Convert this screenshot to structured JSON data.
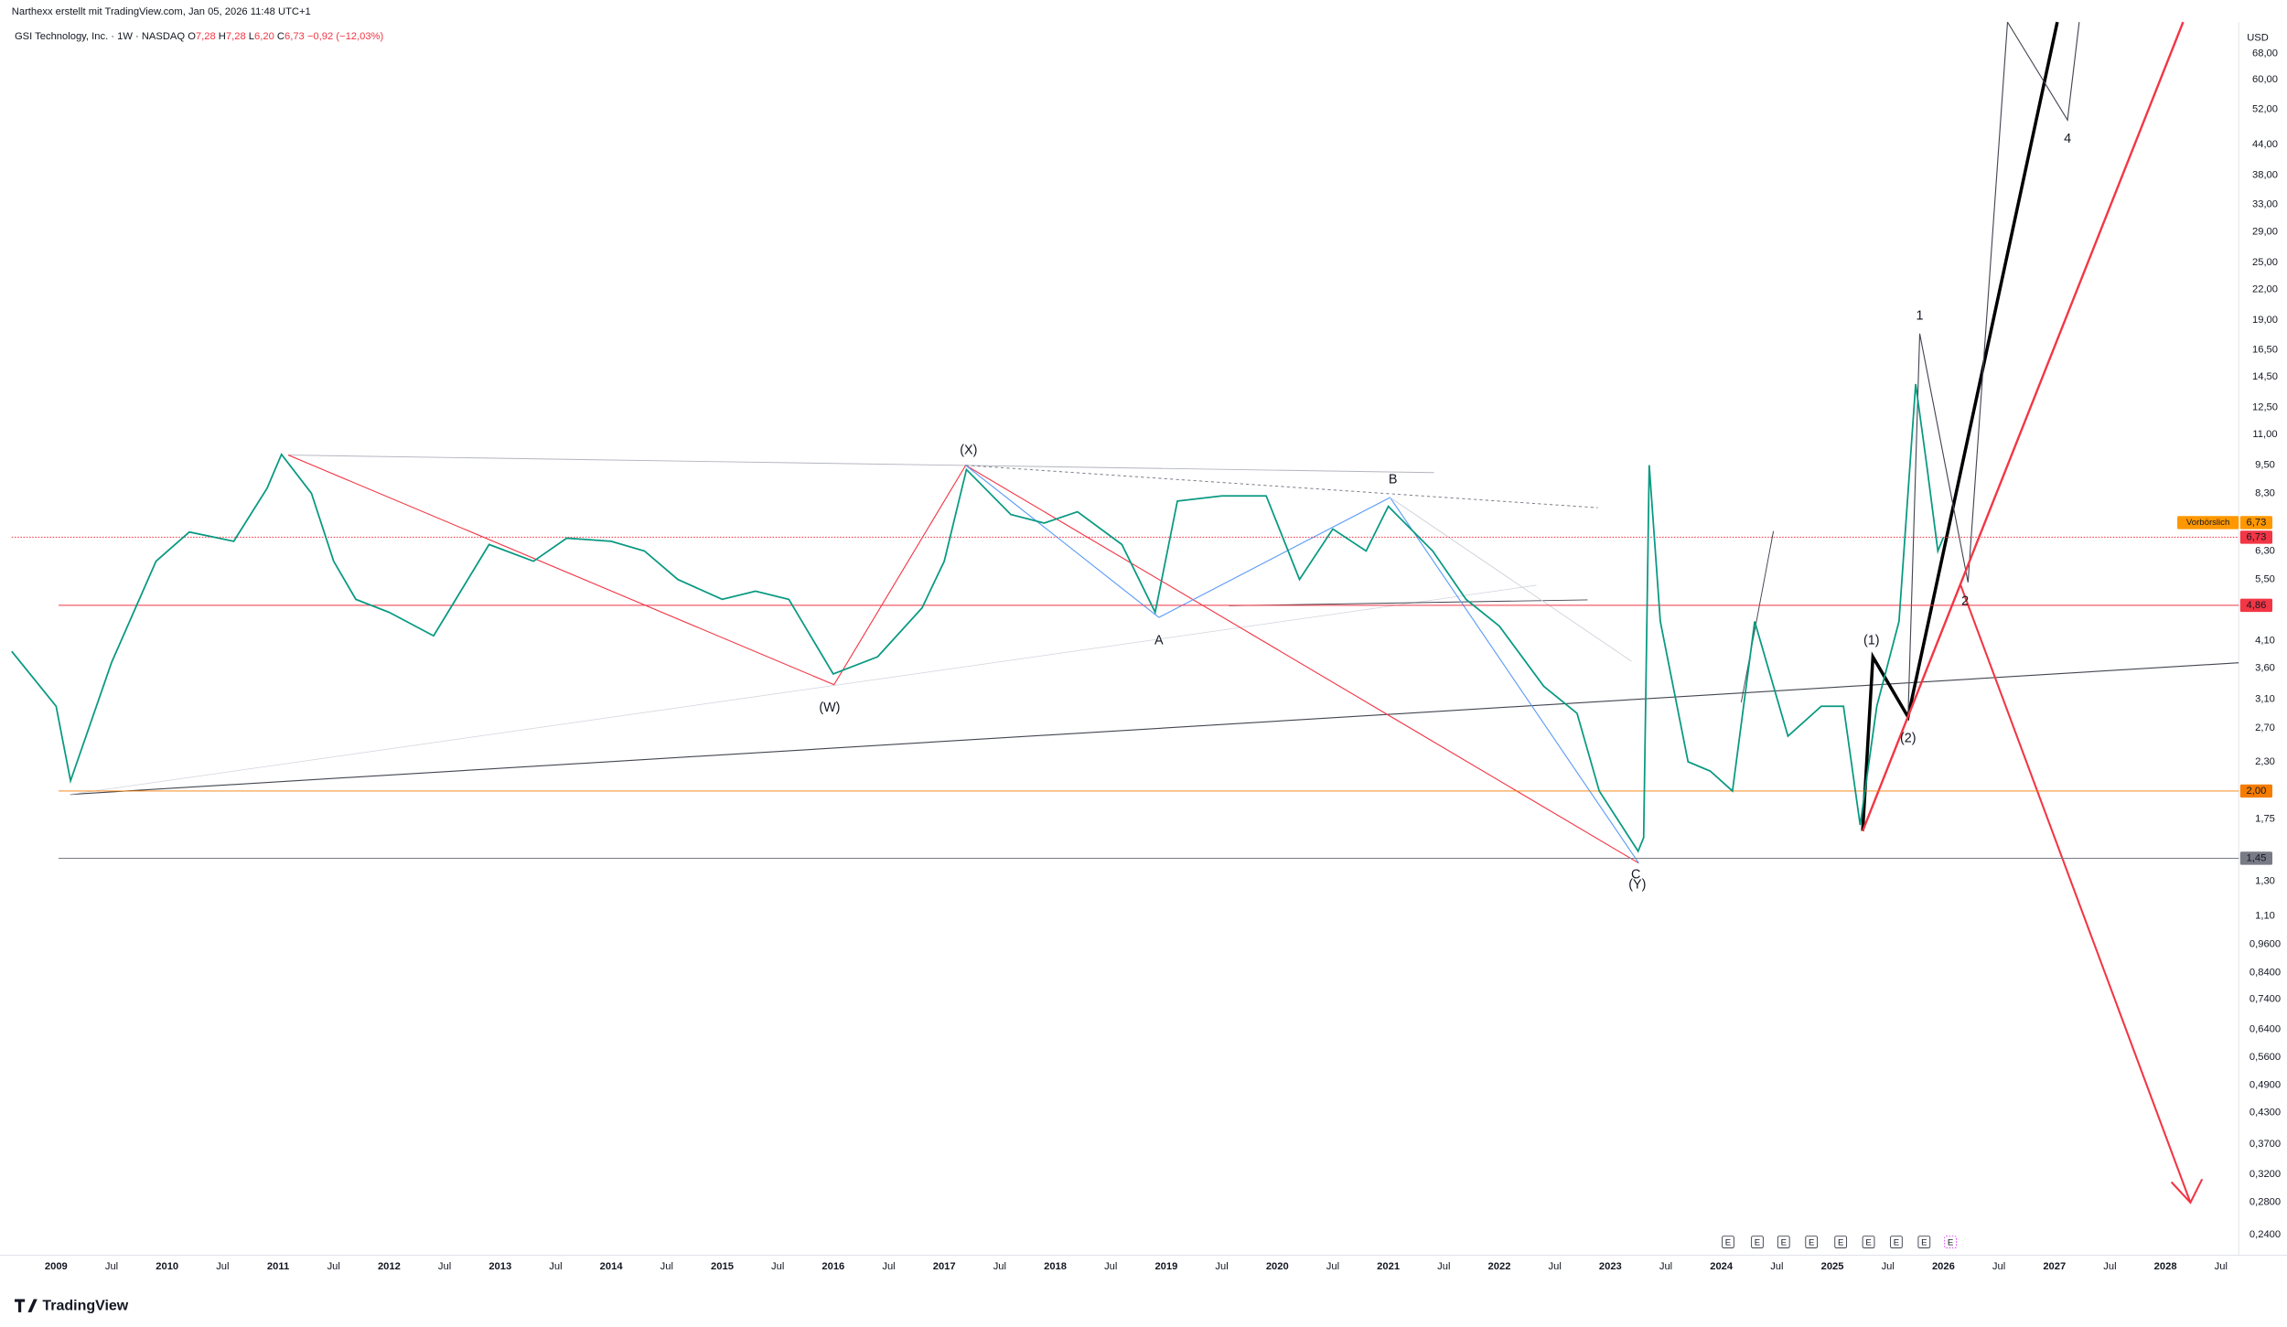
{
  "chart_data": {
    "type": "line",
    "header": {
      "credit": "Narthexx erstellt mit TradingView.com, Jan 05, 2026 11:48 UTC+1",
      "symbol": "GSI Technology, Inc. · 1W · NASDAQ",
      "o_label": "O",
      "o": "7,28",
      "h_label": "H",
      "h": "7,28",
      "l_label": "L",
      "l": "6,20",
      "c_label": "C",
      "c": "6,73",
      "change": "−0,92 (−12,03%)"
    },
    "currency": "USD",
    "logo": "TradingView",
    "log_scale": true,
    "grid": false,
    "xlim": [
      2008.6,
      2028.66
    ],
    "ylim": [
      0.222,
      79
    ],
    "xticks": [
      {
        "value": 2009,
        "label": "2009"
      },
      {
        "value": 2009.5,
        "label": "Jul"
      },
      {
        "value": 2010,
        "label": "2010"
      },
      {
        "value": 2010.5,
        "label": "Jul"
      },
      {
        "value": 2011,
        "label": "2011"
      },
      {
        "value": 2011.5,
        "label": "Jul"
      },
      {
        "value": 2012,
        "label": "2012"
      },
      {
        "value": 2012.5,
        "label": "Jul"
      },
      {
        "value": 2013,
        "label": "2013"
      },
      {
        "value": 2013.5,
        "label": "Jul"
      },
      {
        "value": 2014,
        "label": "2014"
      },
      {
        "value": 2014.5,
        "label": "Jul"
      },
      {
        "value": 2015,
        "label": "2015"
      },
      {
        "value": 2015.5,
        "label": "Jul"
      },
      {
        "value": 2016,
        "label": "2016"
      },
      {
        "value": 2016.5,
        "label": "Jul"
      },
      {
        "value": 2017,
        "label": "2017"
      },
      {
        "value": 2017.5,
        "label": "Jul"
      },
      {
        "value": 2018,
        "label": "2018"
      },
      {
        "value": 2018.5,
        "label": "Jul"
      },
      {
        "value": 2019,
        "label": "2019"
      },
      {
        "value": 2019.5,
        "label": "Jul"
      },
      {
        "value": 2020,
        "label": "2020"
      },
      {
        "value": 2020.5,
        "label": "Jul"
      },
      {
        "value": 2021,
        "label": "2021"
      },
      {
        "value": 2021.5,
        "label": "Jul"
      },
      {
        "value": 2022,
        "label": "2022"
      },
      {
        "value": 2022.5,
        "label": "Jul"
      },
      {
        "value": 2023,
        "label": "2023"
      },
      {
        "value": 2023.5,
        "label": "Jul"
      },
      {
        "value": 2024,
        "label": "2024"
      },
      {
        "value": 2024.5,
        "label": "Jul"
      },
      {
        "value": 2025,
        "label": "2025"
      },
      {
        "value": 2025.5,
        "label": "Jul"
      },
      {
        "value": 2026,
        "label": "2026"
      },
      {
        "value": 2026.5,
        "label": "Jul"
      },
      {
        "value": 2027,
        "label": "2027"
      },
      {
        "value": 2027.5,
        "label": "Jul"
      },
      {
        "value": 2028,
        "label": "2028"
      },
      {
        "value": 2028.5,
        "label": "Jul"
      }
    ],
    "yticks": [
      {
        "value": 68,
        "label": "68,00"
      },
      {
        "value": 60,
        "label": "60,00"
      },
      {
        "value": 52,
        "label": "52,00"
      },
      {
        "value": 44,
        "label": "44,00"
      },
      {
        "value": 38,
        "label": "38,00"
      },
      {
        "value": 33,
        "label": "33,00"
      },
      {
        "value": 29,
        "label": "29,00"
      },
      {
        "value": 25,
        "label": "25,00"
      },
      {
        "value": 22,
        "label": "22,00"
      },
      {
        "value": 19,
        "label": "19,00"
      },
      {
        "value": 16.5,
        "label": "16,50"
      },
      {
        "value": 14.5,
        "label": "14,50"
      },
      {
        "value": 12.5,
        "label": "12,50"
      },
      {
        "value": 11,
        "label": "11,00"
      },
      {
        "value": 9.5,
        "label": "9,50"
      },
      {
        "value": 8.3,
        "label": "8,30"
      },
      {
        "value": 6.3,
        "label": "6,30"
      },
      {
        "value": 5.5,
        "label": "5,50"
      },
      {
        "value": 4.1,
        "label": "4,10"
      },
      {
        "value": 3.6,
        "label": "3,60"
      },
      {
        "value": 3.1,
        "label": "3,10"
      },
      {
        "value": 2.7,
        "label": "2,70"
      },
      {
        "value": 2.3,
        "label": "2,30"
      },
      {
        "value": 1.75,
        "label": "1,75"
      },
      {
        "value": 1.3,
        "label": "1,30"
      },
      {
        "value": 1.1,
        "label": "1,10"
      },
      {
        "value": 0.96,
        "label": "0,9600"
      },
      {
        "value": 0.84,
        "label": "0,8400"
      },
      {
        "value": 0.74,
        "label": "0,7400"
      },
      {
        "value": 0.64,
        "label": "0,6400"
      },
      {
        "value": 0.56,
        "label": "0,5600"
      },
      {
        "value": 0.49,
        "label": "0,4900"
      },
      {
        "value": 0.43,
        "label": "0,4300"
      },
      {
        "value": 0.37,
        "label": "0,3700"
      },
      {
        "value": 0.32,
        "label": "0,3200"
      },
      {
        "value": 0.28,
        "label": "0,2800"
      },
      {
        "value": 0.24,
        "label": "0,2400"
      }
    ],
    "x": [
      2008.6,
      2009.0,
      2009.13,
      2009.5,
      2009.9,
      2010.2,
      2010.6,
      2010.9,
      2011.03,
      2011.3,
      2011.5,
      2011.7,
      2012.0,
      2012.4,
      2012.6,
      2012.9,
      2013.3,
      2013.6,
      2014.0,
      2014.3,
      2014.6,
      2015.0,
      2015.3,
      2015.6,
      2016.0,
      2016.4,
      2016.8,
      2017.0,
      2017.2,
      2017.6,
      2017.9,
      2018.2,
      2018.6,
      2018.9,
      2019.1,
      2019.5,
      2019.9,
      2020.2,
      2020.5,
      2020.8,
      2021.0,
      2021.4,
      2021.7,
      2022.0,
      2022.4,
      2022.7,
      2022.9,
      2023.25,
      2023.3,
      2023.35,
      2023.45,
      2023.7,
      2023.9,
      2024.1,
      2024.3,
      2024.6,
      2024.9,
      2025.1,
      2025.25,
      2025.4,
      2025.6,
      2025.75,
      2025.85,
      2025.95,
      2026.0
    ],
    "series": [
      {
        "color": "#089981",
        "values": [
          3.9,
          3.0,
          2.1,
          3.7,
          6.0,
          6.9,
          6.6,
          8.5,
          10,
          8.3,
          6.0,
          5.0,
          4.7,
          4.2,
          5.0,
          6.5,
          6.0,
          6.7,
          6.6,
          6.3,
          5.5,
          5.0,
          5.2,
          5.0,
          3.5,
          3.8,
          4.8,
          6.0,
          9.3,
          7.5,
          7.2,
          7.6,
          6.5,
          4.7,
          8.0,
          8.2,
          8.2,
          5.5,
          7.0,
          6.3,
          7.8,
          6.3,
          5.0,
          4.4,
          3.3,
          2.9,
          2.0,
          1.5,
          1.6,
          9.5,
          4.5,
          2.3,
          2.2,
          2.0,
          4.5,
          2.6,
          3.0,
          3.0,
          1.7,
          3.0,
          4.5,
          14,
          9.5,
          6.3,
          6.73
        ]
      }
    ],
    "levels": [
      {
        "value": 6.73,
        "label": "6,73",
        "color": "#f23645"
      },
      {
        "value": 4.86,
        "label": "4,86",
        "color": "#f23645"
      },
      {
        "value": 2.0,
        "label": "2,00",
        "color": "#f57c00"
      },
      {
        "value": 1.45,
        "label": "1,45",
        "color": "#787b86"
      }
    ],
    "premarket": {
      "label": "Vorbörslich",
      "value": "6,73",
      "color": "#ff9800"
    },
    "annotations": [
      "(X)",
      "(W)",
      "(Y)",
      "C",
      "A",
      "B",
      "1",
      "2",
      "(1)",
      "(2)",
      "4"
    ],
    "earnings_marker": "E"
  }
}
